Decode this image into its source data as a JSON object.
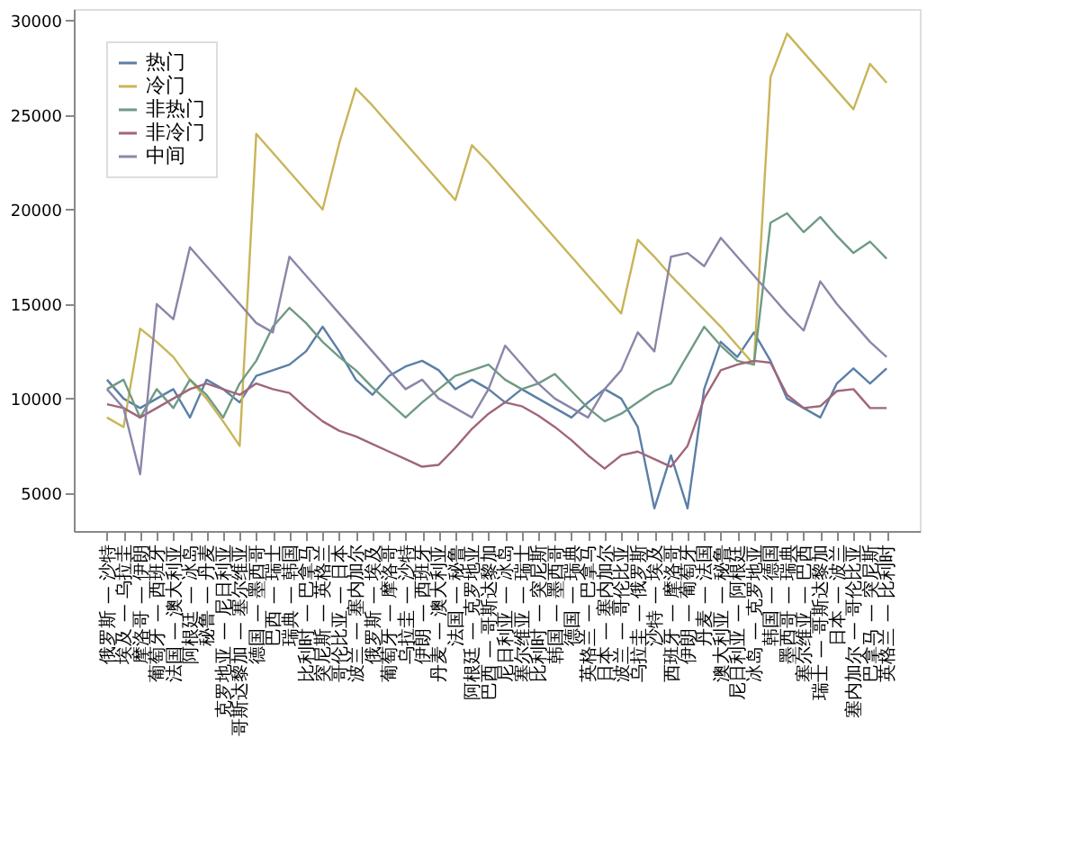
{
  "chart_data": {
    "type": "line",
    "categories": [
      "俄罗斯 — 沙特",
      "埃及 — 乌拉圭",
      "摩洛哥 — 伊朗",
      "葡萄牙 — 西班牙",
      "法国 — 澳大利亚",
      "阿根廷 — 冰岛",
      "秘鲁 — 丹麦",
      "克罗地亚 — 尼日利亚",
      "哥斯达黎加 — 塞尔维亚",
      "德国 — 墨西哥",
      "巴西 — 瑞士",
      "瑞典 — 韩国",
      "比利时 — 巴拿马",
      "突尼斯 — 英格兰",
      "哥伦比亚 — 日本",
      "波兰 — 塞内加尔",
      "俄罗斯 — 埃及",
      "葡萄牙 — 摩洛哥",
      "乌拉圭 — 沙特",
      "伊朗 — 西班牙",
      "丹麦 — 澳大利亚",
      "法国 — 秘鲁",
      "阿根廷 — 克罗地亚",
      "巴西 — 哥斯达黎加",
      "尼日利亚 — 冰岛",
      "塞尔维亚 — 瑞士",
      "比利时 — 突尼斯",
      "韩国 — 墨西哥",
      "德国 — 瑞典",
      "英格兰 — 巴拿马",
      "日本 — 塞内加尔",
      "波兰 — 哥伦比亚",
      "乌拉圭 — 俄罗斯",
      "沙特 — 埃及",
      "西班牙 — 摩洛哥",
      "伊朗 — 葡萄牙",
      "丹麦 — 法国",
      "澳大利亚 — 秘鲁",
      "尼日利亚 — 阿根廷",
      "冰岛 — 克罗地亚",
      "韩国 — 德国",
      "墨西哥 — 瑞典",
      "塞尔维亚 — 巴西",
      "瑞士 — 哥斯达黎加",
      "日本 — 波兰",
      "塞内加尔 — 哥伦比亚",
      "巴拿马 — 突尼斯",
      "英格兰 — 比利时"
    ],
    "series": [
      {
        "name": "热门",
        "color": "#5b7fa6",
        "values": [
          11000,
          10000,
          9500,
          10000,
          10500,
          9000,
          11000,
          10500,
          9800,
          11200,
          11500,
          11800,
          12500,
          13800,
          12500,
          11000,
          10200,
          11200,
          11700,
          12000,
          11500,
          10500,
          11000,
          10500,
          9800,
          10500,
          10000,
          9500,
          9000,
          9800,
          10500,
          10000,
          8500,
          4200,
          7000,
          4200,
          10500,
          13000,
          12200,
          13500,
          12000,
          10000,
          9500,
          9000,
          10800,
          11600,
          10800,
          11600
        ]
      },
      {
        "name": "冷门",
        "color": "#c9b458",
        "values": [
          9000,
          8500,
          13700,
          13000,
          12200,
          11000,
          10000,
          8800,
          7500,
          24000,
          23000,
          22000,
          21000,
          20000,
          23500,
          26400,
          25500,
          24500,
          23500,
          22500,
          21500,
          20500,
          23400,
          22500,
          21500,
          20500,
          19500,
          18500,
          17500,
          16500,
          15500,
          14500,
          18400,
          17500,
          16500,
          15600,
          14700,
          13800,
          12800,
          11800,
          27000,
          29300,
          28300,
          27300,
          26300,
          25300,
          27700,
          26700
        ]
      },
      {
        "name": "非热门",
        "color": "#6f9a84",
        "values": [
          10500,
          11000,
          9000,
          10500,
          9500,
          11000,
          10200,
          9000,
          10800,
          12000,
          13800,
          14800,
          14000,
          13000,
          12200,
          11500,
          10600,
          9800,
          9000,
          9800,
          10500,
          11200,
          11500,
          11800,
          11000,
          10500,
          10800,
          11300,
          10400,
          9500,
          8800,
          9200,
          9800,
          10400,
          10800,
          12300,
          13800,
          12800,
          12000,
          11800,
          19300,
          19800,
          18800,
          19600,
          18600,
          17700,
          18300,
          17400
        ]
      },
      {
        "name": "非冷门",
        "color": "#a0667a",
        "values": [
          9700,
          9500,
          9000,
          9500,
          10000,
          10500,
          10800,
          10500,
          10200,
          10800,
          10500,
          10300,
          9500,
          8800,
          8300,
          8000,
          7600,
          7200,
          6800,
          6400,
          6500,
          7400,
          8400,
          9200,
          9800,
          9600,
          9100,
          8500,
          7800,
          7000,
          6300,
          7000,
          7200,
          6800,
          6400,
          7500,
          10000,
          11500,
          11800,
          12000,
          11900,
          10200,
          9500,
          9600,
          10400,
          10500,
          9500,
          9500
        ]
      },
      {
        "name": "中间",
        "color": "#8a86a8",
        "values": [
          10500,
          9500,
          6000,
          15000,
          14200,
          18000,
          17000,
          16000,
          15000,
          14000,
          13500,
          17500,
          16500,
          15500,
          14500,
          13500,
          12500,
          11500,
          10500,
          11000,
          10000,
          9500,
          9000,
          10500,
          12800,
          11800,
          10800,
          10000,
          9500,
          9000,
          10500,
          11500,
          13500,
          12500,
          17500,
          17700,
          17000,
          18500,
          17500,
          16500,
          15500,
          14500,
          13600,
          16200,
          15000,
          14000,
          13000,
          12200
        ]
      }
    ],
    "ylim": [
      3000,
      30600
    ],
    "yticks": [
      5000,
      10000,
      15000,
      20000,
      25000,
      30000
    ],
    "legend": "top left",
    "grid": false
  }
}
